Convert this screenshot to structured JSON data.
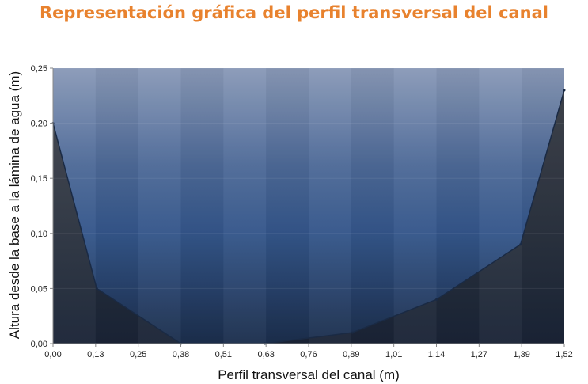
{
  "chart_data": {
    "type": "area",
    "title": "Representación gráfica del perfil transversal del canal",
    "xlabel": "Perfil transversal del canal (m)",
    "ylabel": "Altura desde la base a la lámina de agua (m)",
    "x_tick_labels": [
      "0,00",
      "0,13",
      "0,25",
      "0,38",
      "0,51",
      "0,63",
      "0,76",
      "0,89",
      "1,01",
      "1,14",
      "1,27",
      "1,39",
      "1,52"
    ],
    "y_tick_labels": [
      "0,00",
      "0,05",
      "0,10",
      "0,15",
      "0,20",
      "0,25"
    ],
    "xlim": [
      0,
      1.52
    ],
    "ylim": [
      0,
      0.25
    ],
    "grid": false,
    "legend": "none",
    "series": [
      {
        "x": [
          0.0,
          0.13,
          0.38,
          0.63,
          0.89,
          1.14,
          1.39,
          1.52
        ],
        "values": [
          0.2,
          0.05,
          0.0,
          0.0,
          0.01,
          0.04,
          0.09,
          0.23
        ]
      }
    ],
    "colors": {
      "title": "#e8822e",
      "water_top": "#8a9ab8",
      "water_bottom": "#1c2e4c",
      "dry": "#3a3f4a"
    }
  }
}
